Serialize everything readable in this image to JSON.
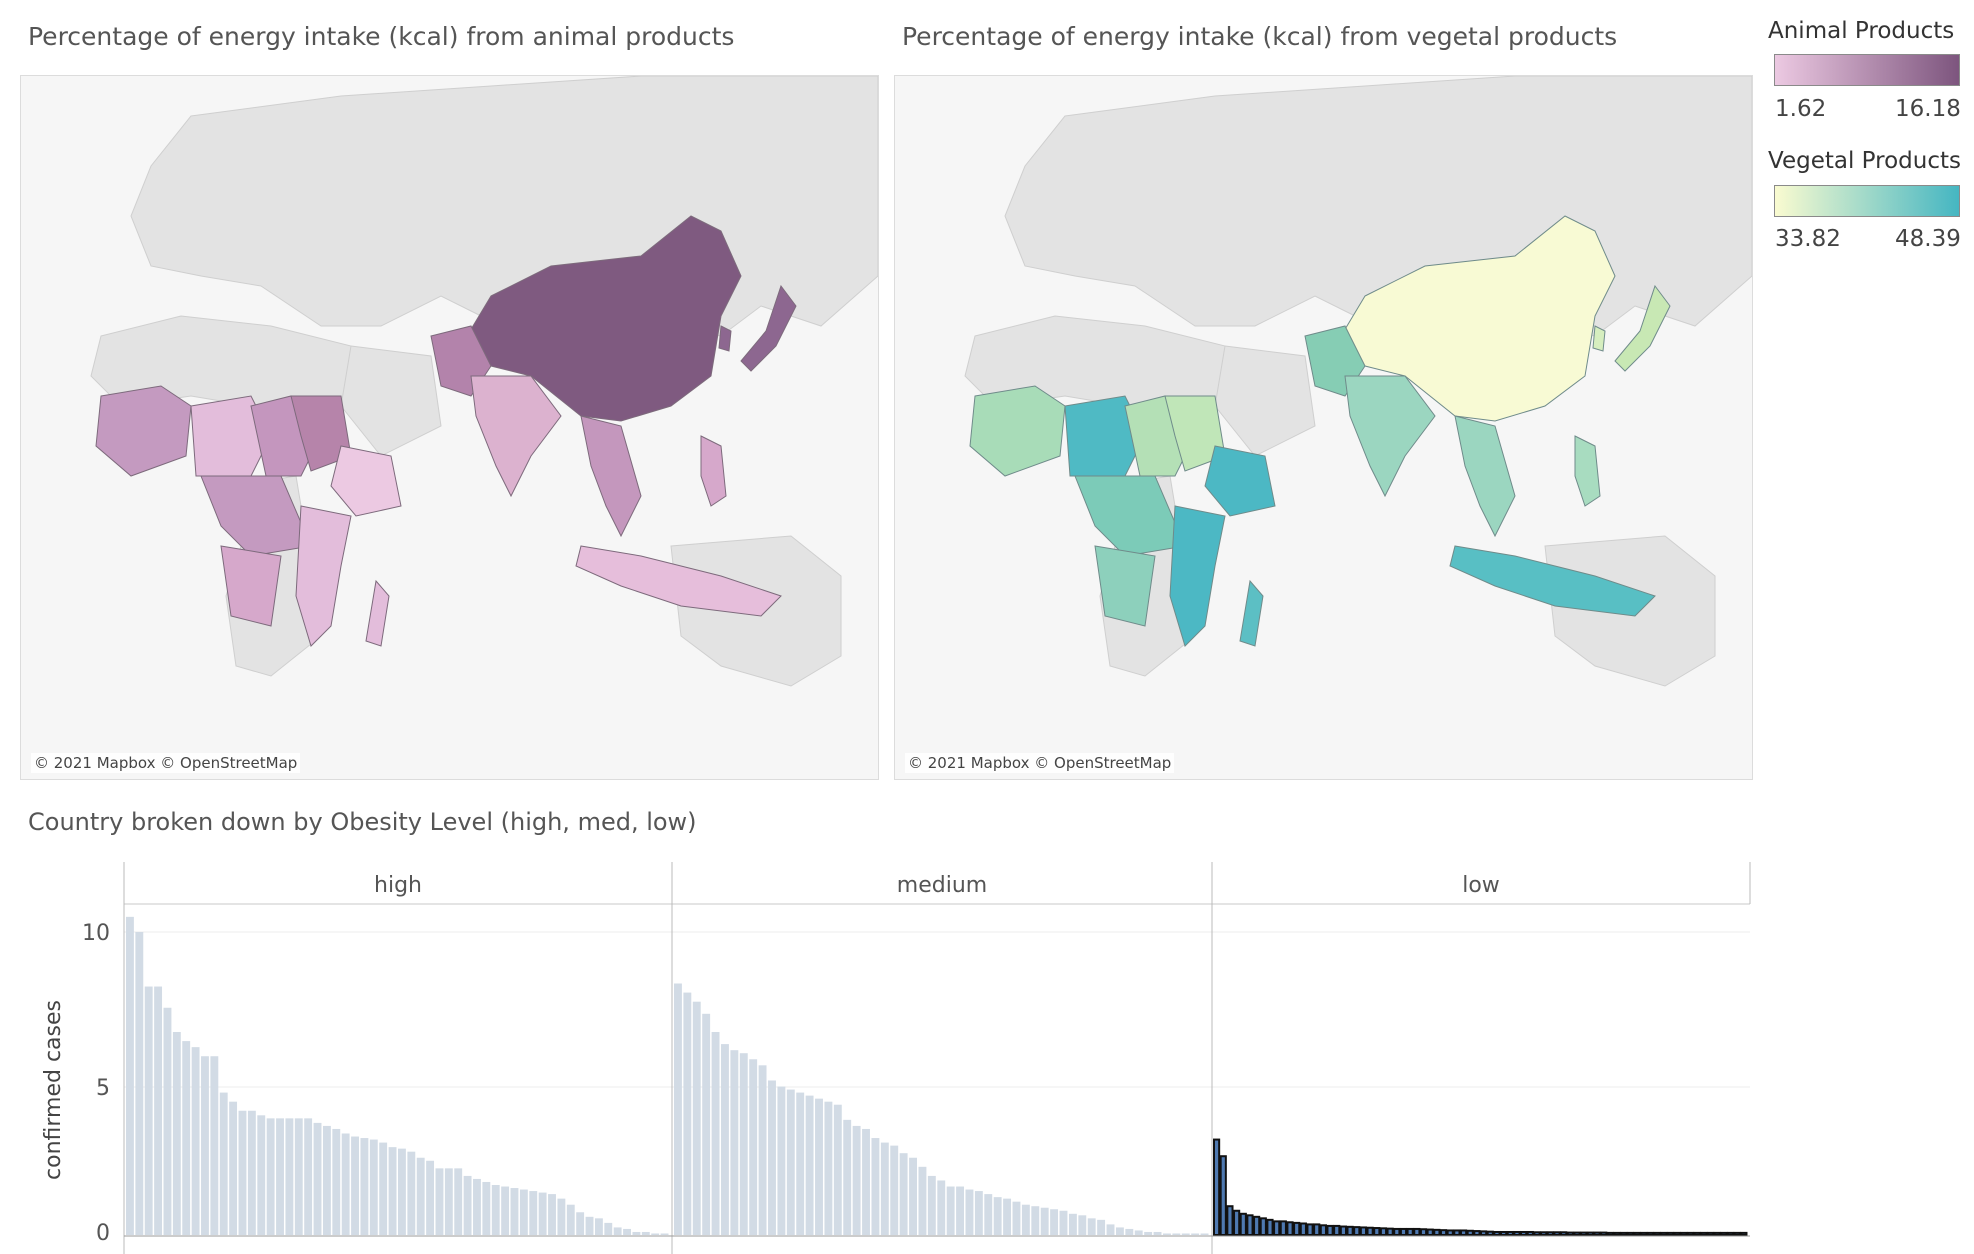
{
  "maps": {
    "animal": {
      "title": "Percentage of energy intake (kcal) from animal products",
      "attribution": "© 2021 Mapbox © OpenStreetMap"
    },
    "vegetal": {
      "title": "Percentage of energy intake (kcal) from vegetal products",
      "attribution": "© 2021 Mapbox © OpenStreetMap"
    }
  },
  "legends": {
    "animal": {
      "title": "Animal Products",
      "min": "1.62",
      "max": "16.18",
      "color_low": "#ecc9e2",
      "color_high": "#7d557e"
    },
    "vegetal": {
      "title": "Vegetal Products",
      "min": "33.82",
      "max": "48.39",
      "color_low": "#fafbd0",
      "color_high": "#45b6c2"
    }
  },
  "chart_data": [
    {
      "type": "choropleth-map",
      "title": "Percentage of energy intake (kcal) from animal products",
      "scale_min": 1.62,
      "scale_max": 16.18,
      "regions": [
        {
          "region": "China",
          "value": 16.18
        },
        {
          "region": "Mongolia",
          "value": 16.18
        },
        {
          "region": "Japan",
          "value": 12.5
        },
        {
          "region": "Korea",
          "value": 12.0
        },
        {
          "region": "Pakistan",
          "value": 9.0
        },
        {
          "region": "India",
          "value": 6.0
        },
        {
          "region": "Mali",
          "value": 8.0
        },
        {
          "region": "Chad",
          "value": 7.0
        },
        {
          "region": "Sudan",
          "value": 9.0
        },
        {
          "region": "Ethiopia",
          "value": 3.0
        },
        {
          "region": "Indonesia",
          "value": 4.0
        }
      ]
    },
    {
      "type": "choropleth-map",
      "title": "Percentage of energy intake (kcal) from vegetal products",
      "scale_min": 33.82,
      "scale_max": 48.39,
      "regions": [
        {
          "region": "China",
          "value": 33.82
        },
        {
          "region": "Japan",
          "value": 38.0
        },
        {
          "region": "Pakistan",
          "value": 44.0
        },
        {
          "region": "India",
          "value": 43.0
        },
        {
          "region": "Mali",
          "value": 40.0
        },
        {
          "region": "Nigeria",
          "value": 47.0
        },
        {
          "region": "Sudan",
          "value": 38.0
        },
        {
          "region": "Ethiopia",
          "value": 47.5
        },
        {
          "region": "Mozambique",
          "value": 46.0
        },
        {
          "region": "Indonesia",
          "value": 46.0
        }
      ]
    },
    {
      "type": "bar",
      "title": "Country broken down by Obesity Level (high, med, low)",
      "ylabel": "confirmed cases",
      "ylim": [
        0,
        11
      ],
      "yticks": [
        "0",
        "5",
        "10"
      ],
      "grid": true,
      "panels": [
        {
          "label": "high",
          "values": [
            10.5,
            10,
            8.2,
            8.2,
            7.5,
            6.7,
            6.4,
            6.2,
            5.9,
            5.9,
            4.7,
            4.4,
            4.1,
            4.1,
            3.95,
            3.85,
            3.85,
            3.85,
            3.85,
            3.85,
            3.7,
            3.6,
            3.5,
            3.35,
            3.25,
            3.2,
            3.15,
            3.05,
            2.9,
            2.85,
            2.75,
            2.55,
            2.45,
            2.2,
            2.2,
            2.2,
            1.95,
            1.85,
            1.75,
            1.65,
            1.6,
            1.55,
            1.5,
            1.45,
            1.4,
            1.35,
            1.2,
            1.0,
            0.75,
            0.6,
            0.55,
            0.4,
            0.25,
            0.2,
            0.1,
            0.1,
            0.05,
            0.05
          ]
        },
        {
          "label": "medium",
          "values": [
            8.3,
            8.0,
            7.7,
            7.3,
            6.7,
            6.3,
            6.1,
            6.0,
            5.8,
            5.6,
            5.1,
            4.9,
            4.8,
            4.7,
            4.6,
            4.5,
            4.4,
            4.3,
            3.8,
            3.6,
            3.5,
            3.2,
            3.05,
            2.95,
            2.7,
            2.55,
            2.25,
            1.95,
            1.8,
            1.6,
            1.6,
            1.5,
            1.45,
            1.35,
            1.25,
            1.2,
            1.1,
            1.0,
            0.95,
            0.9,
            0.85,
            0.8,
            0.7,
            0.65,
            0.55,
            0.5,
            0.35,
            0.25,
            0.2,
            0.15,
            0.1,
            0.1,
            0.05,
            0.05,
            0.05,
            0.05,
            0.05
          ]
        },
        {
          "label": "low",
          "values": [
            3.15,
            2.6,
            0.95,
            0.8,
            0.7,
            0.65,
            0.6,
            0.55,
            0.5,
            0.45,
            0.45,
            0.42,
            0.4,
            0.38,
            0.35,
            0.35,
            0.32,
            0.3,
            0.3,
            0.28,
            0.27,
            0.26,
            0.25,
            0.24,
            0.23,
            0.22,
            0.21,
            0.2,
            0.2,
            0.2,
            0.2,
            0.19,
            0.18,
            0.17,
            0.16,
            0.15,
            0.15,
            0.15,
            0.14,
            0.13,
            0.12,
            0.11,
            0.1,
            0.1,
            0.1,
            0.1,
            0.1,
            0.1,
            0.09,
            0.09,
            0.09,
            0.09,
            0.09,
            0.08,
            0.08,
            0.08,
            0.08,
            0.08,
            0.08,
            0.07,
            0.07,
            0.07,
            0.07,
            0.07,
            0.07,
            0.07,
            0.07,
            0.07,
            0.07,
            0.07,
            0.07,
            0.07,
            0.07,
            0.07,
            0.07,
            0.07,
            0.07,
            0.07,
            0.07,
            0.07
          ]
        }
      ],
      "bar_colors": {
        "high": "#d2dbe5",
        "medium": "#d2dbe5",
        "low": "#4e79b1"
      }
    }
  ]
}
